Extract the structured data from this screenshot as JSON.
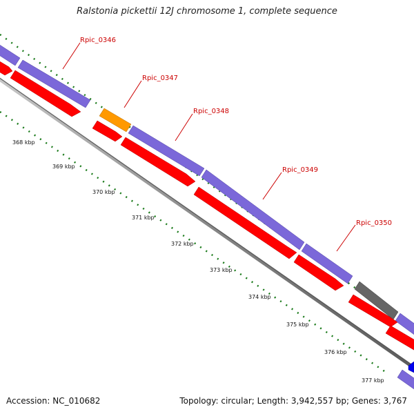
{
  "title": "Ralstonia pickettii 12J chromosome 1, complete sequence",
  "accession": "Accession: NC_010682",
  "summary": "Topology: circular; Length: 3,942,557 bp; Genes: 3,767",
  "colors": {
    "cds_forward": "#7b68d9",
    "cds_reverse": "#ff0000",
    "cds_highlight": "#ff9900",
    "cds_other": "#666666",
    "cds_blue": "#0000ee",
    "backbone": "#888888",
    "gc_skew_dots": "#1a7a1a",
    "label": "#cc0000"
  },
  "ruler": {
    "unit": "kbp",
    "ticks": [
      {
        "value": 368,
        "label": "368 kbp"
      },
      {
        "value": 369,
        "label": "369 kbp"
      },
      {
        "value": 370,
        "label": "370 kbp"
      },
      {
        "value": 371,
        "label": "371 kbp"
      },
      {
        "value": 372,
        "label": "372 kbp"
      },
      {
        "value": 373,
        "label": "373 kbp"
      },
      {
        "value": 374,
        "label": "374 kbp"
      },
      {
        "value": 375,
        "label": "375 kbp"
      },
      {
        "value": 376,
        "label": "376 kbp"
      },
      {
        "value": 377,
        "label": "377 kbp"
      }
    ]
  },
  "gene_labels": [
    {
      "name": "Rpic_0346"
    },
    {
      "name": "Rpic_0347"
    },
    {
      "name": "Rpic_0348"
    },
    {
      "name": "Rpic_0349"
    },
    {
      "name": "Rpic_0350"
    }
  ]
}
